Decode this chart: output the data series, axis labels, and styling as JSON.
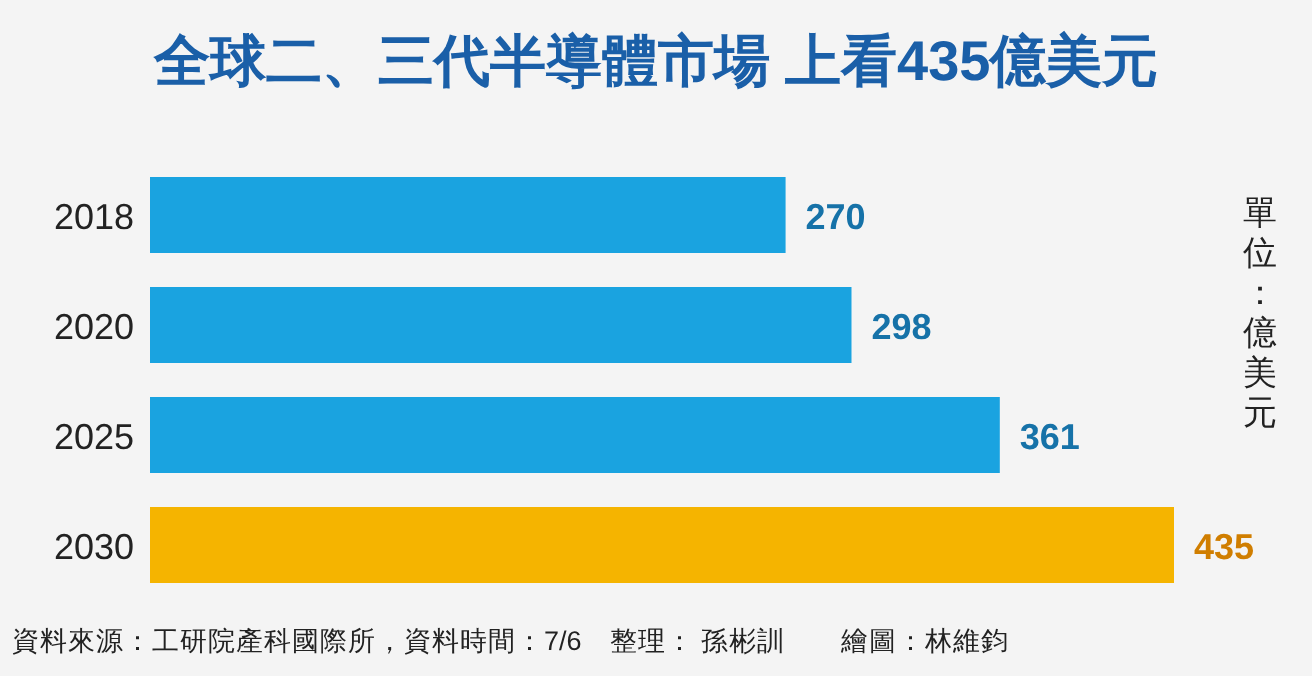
{
  "chart_data": {
    "type": "bar",
    "orientation": "horizontal",
    "title": "全球二、三代半導體市場 上看435億美元",
    "ylabel": "單位：億美元",
    "categories": [
      "2018",
      "2020",
      "2025",
      "2030"
    ],
    "values": [
      270,
      298,
      361,
      435
    ],
    "colors": [
      "#1aa3e0",
      "#1aa3e0",
      "#1aa3e0",
      "#f5b400"
    ],
    "data_labels": true,
    "annotations": [
      "資料來源：工研院產科國際所，資料時間：7/6　整理： 孫彬訓　　繪圖：林維鈞"
    ]
  }
}
